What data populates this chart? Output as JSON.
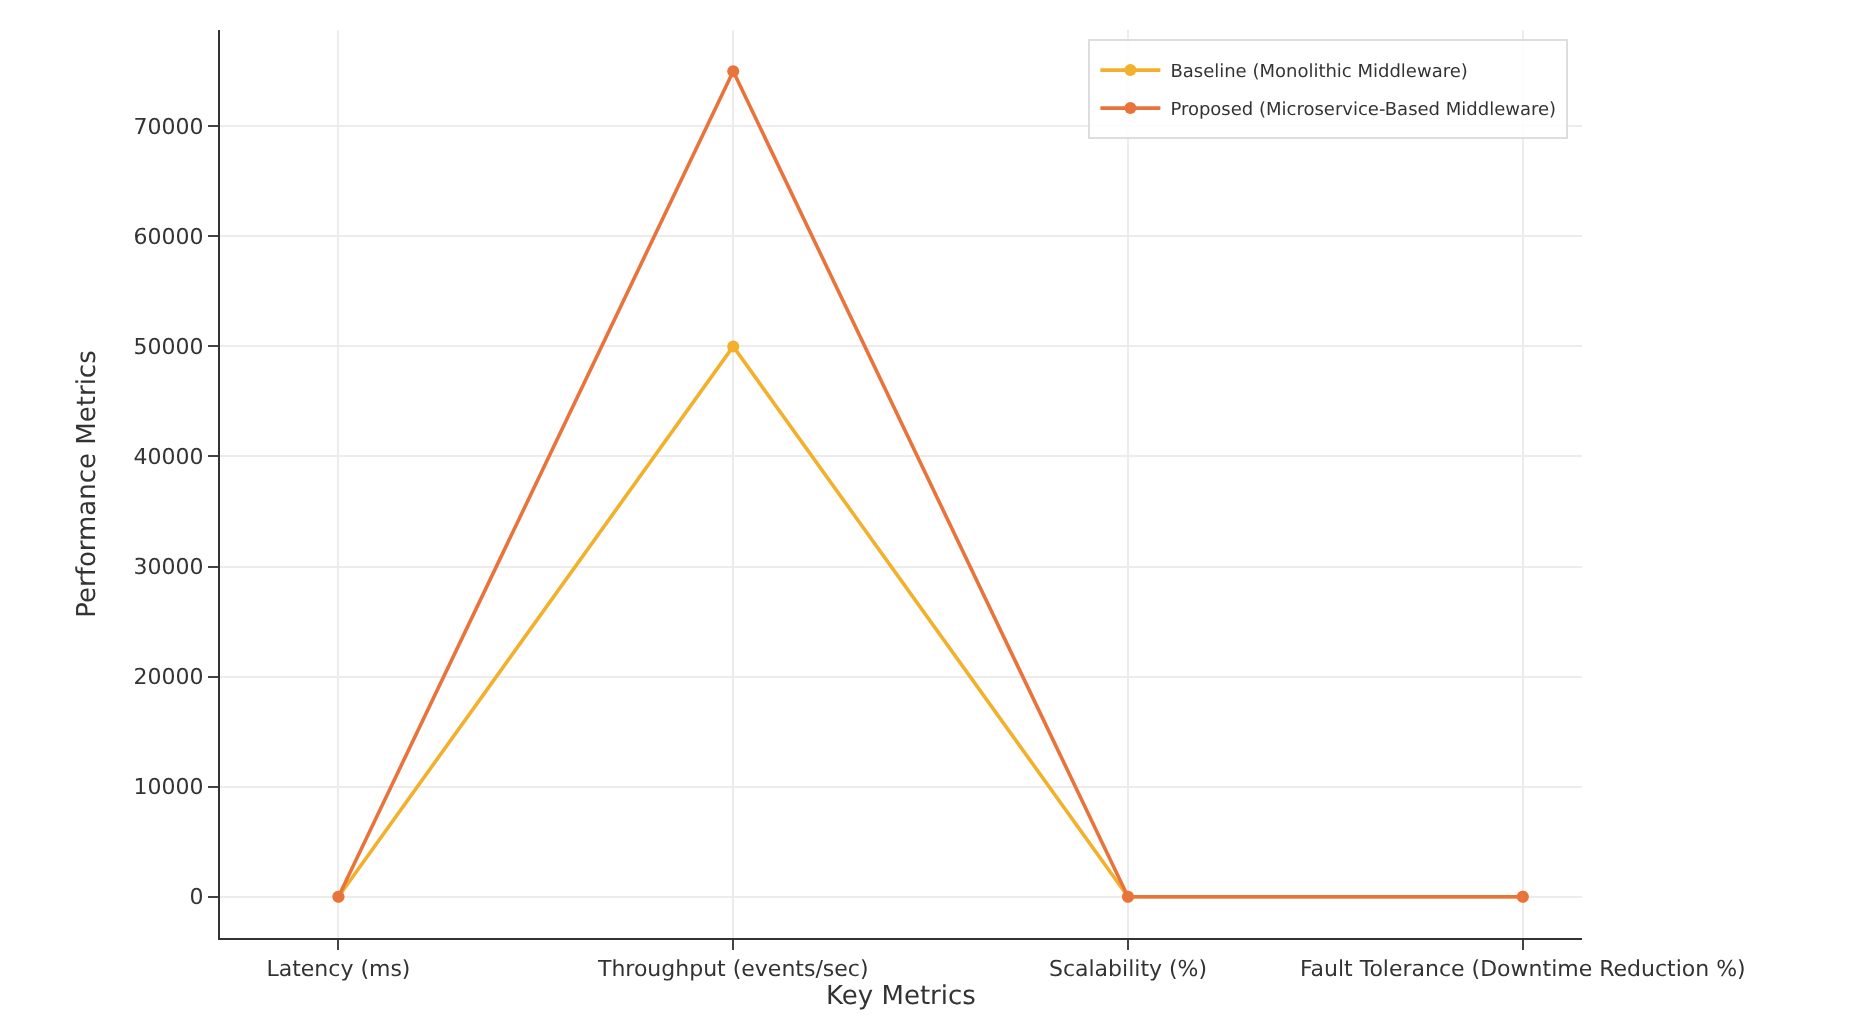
{
  "chart_data": {
    "type": "line",
    "xlabel": "Key Metrics",
    "ylabel": "Performance Metrics",
    "categories": [
      "Latency (ms)",
      "Throughput (events/sec)",
      "Scalability (%)",
      "Fault Tolerance (Downtime Reduction %)"
    ],
    "series": [
      {
        "name": "Baseline (Monolithic Middleware)",
        "color": "#f2b02c",
        "values": [
          0,
          50000,
          0,
          0
        ]
      },
      {
        "name": "Proposed (Microservice-Based Middleware)",
        "color": "#e8743b",
        "values": [
          0,
          75000,
          0,
          0
        ]
      }
    ],
    "ylim": [
      -3750,
      78750
    ],
    "yticks": [
      0,
      10000,
      20000,
      30000,
      40000,
      50000,
      60000,
      70000
    ],
    "grid": true,
    "legend": "top right",
    "marker": "circle",
    "line_style": "solid"
  }
}
